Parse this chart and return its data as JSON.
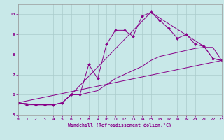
{
  "xlabel": "Windchill (Refroidissement éolien,°C)",
  "xlim": [
    0,
    23
  ],
  "ylim": [
    5,
    10.5
  ],
  "xticks": [
    0,
    1,
    2,
    3,
    4,
    5,
    6,
    7,
    8,
    9,
    10,
    11,
    12,
    13,
    14,
    15,
    16,
    17,
    18,
    19,
    20,
    21,
    22,
    23
  ],
  "yticks": [
    5,
    6,
    7,
    8,
    9,
    10
  ],
  "bg_color": "#c8e8e8",
  "line_color": "#880088",
  "grid_color": "#aacccc",
  "line1_x": [
    0,
    1,
    2,
    3,
    4,
    5,
    6,
    7,
    8,
    9,
    10,
    11,
    12,
    13,
    14,
    15,
    16,
    17,
    18,
    19,
    20,
    21,
    22,
    23
  ],
  "line1_y": [
    5.6,
    5.5,
    5.5,
    5.5,
    5.5,
    5.6,
    6.0,
    6.0,
    7.5,
    6.8,
    8.5,
    9.2,
    9.2,
    8.9,
    9.9,
    10.1,
    9.7,
    9.3,
    8.8,
    9.0,
    8.5,
    8.4,
    7.8,
    7.7
  ],
  "line2_x": [
    0,
    2,
    3,
    4,
    5,
    6,
    15,
    21,
    22,
    23
  ],
  "line2_y": [
    5.6,
    5.5,
    5.5,
    5.5,
    5.6,
    6.0,
    10.1,
    8.4,
    7.8,
    7.7
  ],
  "line3_x": [
    0,
    23
  ],
  "line3_y": [
    5.6,
    7.7
  ],
  "line4_x": [
    0,
    2,
    3,
    4,
    5,
    6,
    7,
    8,
    9,
    10,
    11,
    12,
    13,
    14,
    15,
    16,
    17,
    18,
    19,
    20,
    21,
    22,
    23
  ],
  "line4_y": [
    5.6,
    5.5,
    5.5,
    5.5,
    5.6,
    6.0,
    6.0,
    6.1,
    6.2,
    6.5,
    6.8,
    7.0,
    7.2,
    7.4,
    7.7,
    7.9,
    8.0,
    8.1,
    8.2,
    8.3,
    8.35,
    8.35,
    7.7
  ],
  "tick_color": "#880088",
  "xlabel_color": "#880088"
}
